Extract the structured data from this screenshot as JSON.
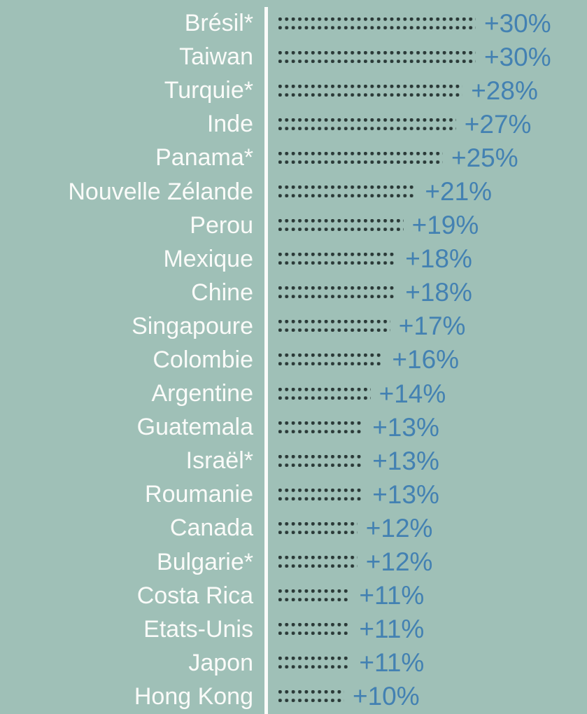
{
  "colors": {
    "background": "#9fc0b7",
    "label_text": "#fafbf9",
    "value_text": "#4381b2",
    "dot": "#2a3937",
    "separator": "#fafbf9"
  },
  "chart_data": {
    "type": "bar",
    "orientation": "horizontal",
    "bar_style": "dot-leader",
    "title": "",
    "xlabel": "",
    "ylabel": "",
    "unit": "%",
    "xlim": [
      0,
      30
    ],
    "grid": "off",
    "legend": "none",
    "categories": [
      "Brésil*",
      "Taiwan",
      "Turquie*",
      "Inde",
      "Panama*",
      "Nouvelle Zélande",
      "Perou",
      "Mexique",
      "Chine",
      "Singapoure",
      "Colombie",
      "Argentine",
      "Guatemala",
      "Israël*",
      "Roumanie",
      "Canada",
      "Bulgarie*",
      "Costa Rica",
      "Etats-Unis",
      "Japon",
      "Hong Kong"
    ],
    "values": [
      30,
      30,
      28,
      27,
      25,
      21,
      19,
      18,
      18,
      17,
      16,
      14,
      13,
      13,
      13,
      12,
      12,
      11,
      11,
      11,
      10
    ],
    "value_labels": [
      "+30%",
      "+30%",
      "+28%",
      "+27%",
      "+25%",
      "+21%",
      "+19%",
      "+18%",
      "+18%",
      "+17%",
      "+16%",
      "+14%",
      "+13%",
      "+13%",
      "+13%",
      "+12%",
      "+12%",
      "+11%",
      "+11%",
      "+11%",
      "+10%"
    ]
  }
}
